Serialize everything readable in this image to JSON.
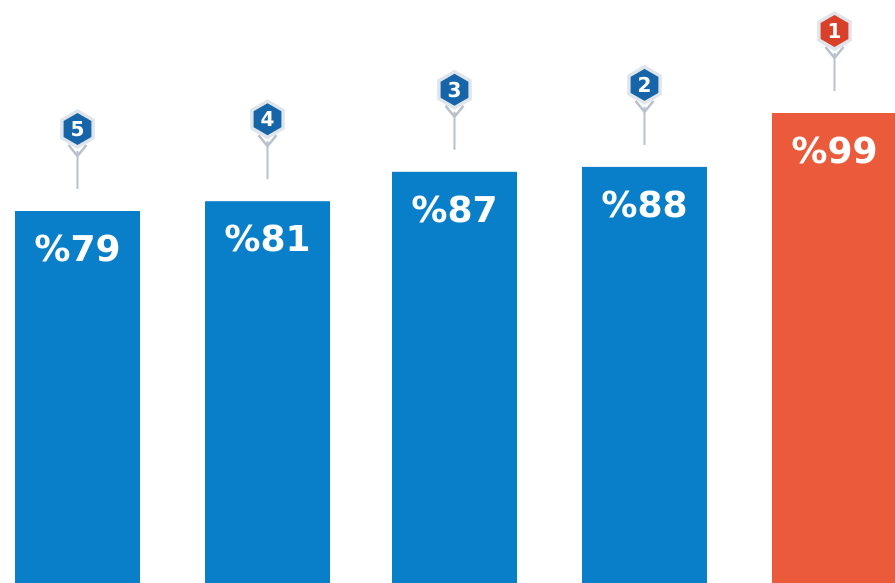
{
  "chart_data": {
    "type": "bar",
    "categories": [
      "5",
      "4",
      "3",
      "2",
      "1"
    ],
    "values": [
      79,
      81,
      87,
      88,
      99
    ],
    "labels": [
      "%79",
      "%81",
      "%87",
      "%88",
      "%99"
    ],
    "colors": [
      "#0a7fc9",
      "#0a7fc9",
      "#0a7fc9",
      "#0a7fc9",
      "#ec5a3c"
    ],
    "badge_colors": [
      "#1565a8",
      "#1565a8",
      "#1565a8",
      "#1565a8",
      "#d9402a"
    ],
    "title": "",
    "xlabel": "",
    "ylabel": "",
    "grid": false,
    "legend": "none"
  }
}
